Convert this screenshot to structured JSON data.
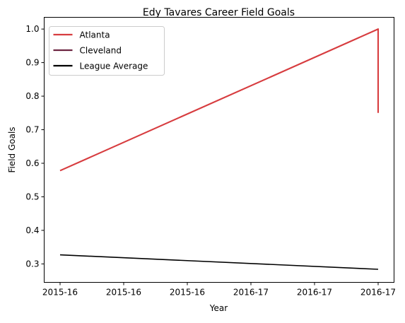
{
  "chart_data": {
    "type": "line",
    "title": "Edy Tavares Career Field Goals",
    "xlabel": "Year",
    "ylabel": "Field Goals",
    "x_ticks": [
      "2015-16",
      "2015-16",
      "2015-16",
      "2016-17",
      "2016-17",
      "2016-17"
    ],
    "xlim": [
      0,
      5
    ],
    "ylim": [
      0.245,
      1.035
    ],
    "y_ticks": [
      0.3,
      0.4,
      0.5,
      0.6,
      0.7,
      0.8,
      0.9,
      1.0
    ],
    "y_tick_labels": [
      "0.3",
      "0.4",
      "0.5",
      "0.6",
      "0.7",
      "0.8",
      "0.9",
      "1.0"
    ],
    "legend_position": "top-left",
    "grid": false,
    "series": [
      {
        "name": "Atlanta",
        "color": "#d73c3f",
        "x": [
          0,
          5,
          5
        ],
        "y": [
          0.578,
          1.0,
          0.75
        ]
      },
      {
        "name": "Cleveland",
        "color": "#6c2441",
        "x": [],
        "y": []
      },
      {
        "name": "League Average",
        "color": "#000000",
        "x": [
          0,
          5
        ],
        "y": [
          0.327,
          0.284
        ]
      }
    ]
  }
}
